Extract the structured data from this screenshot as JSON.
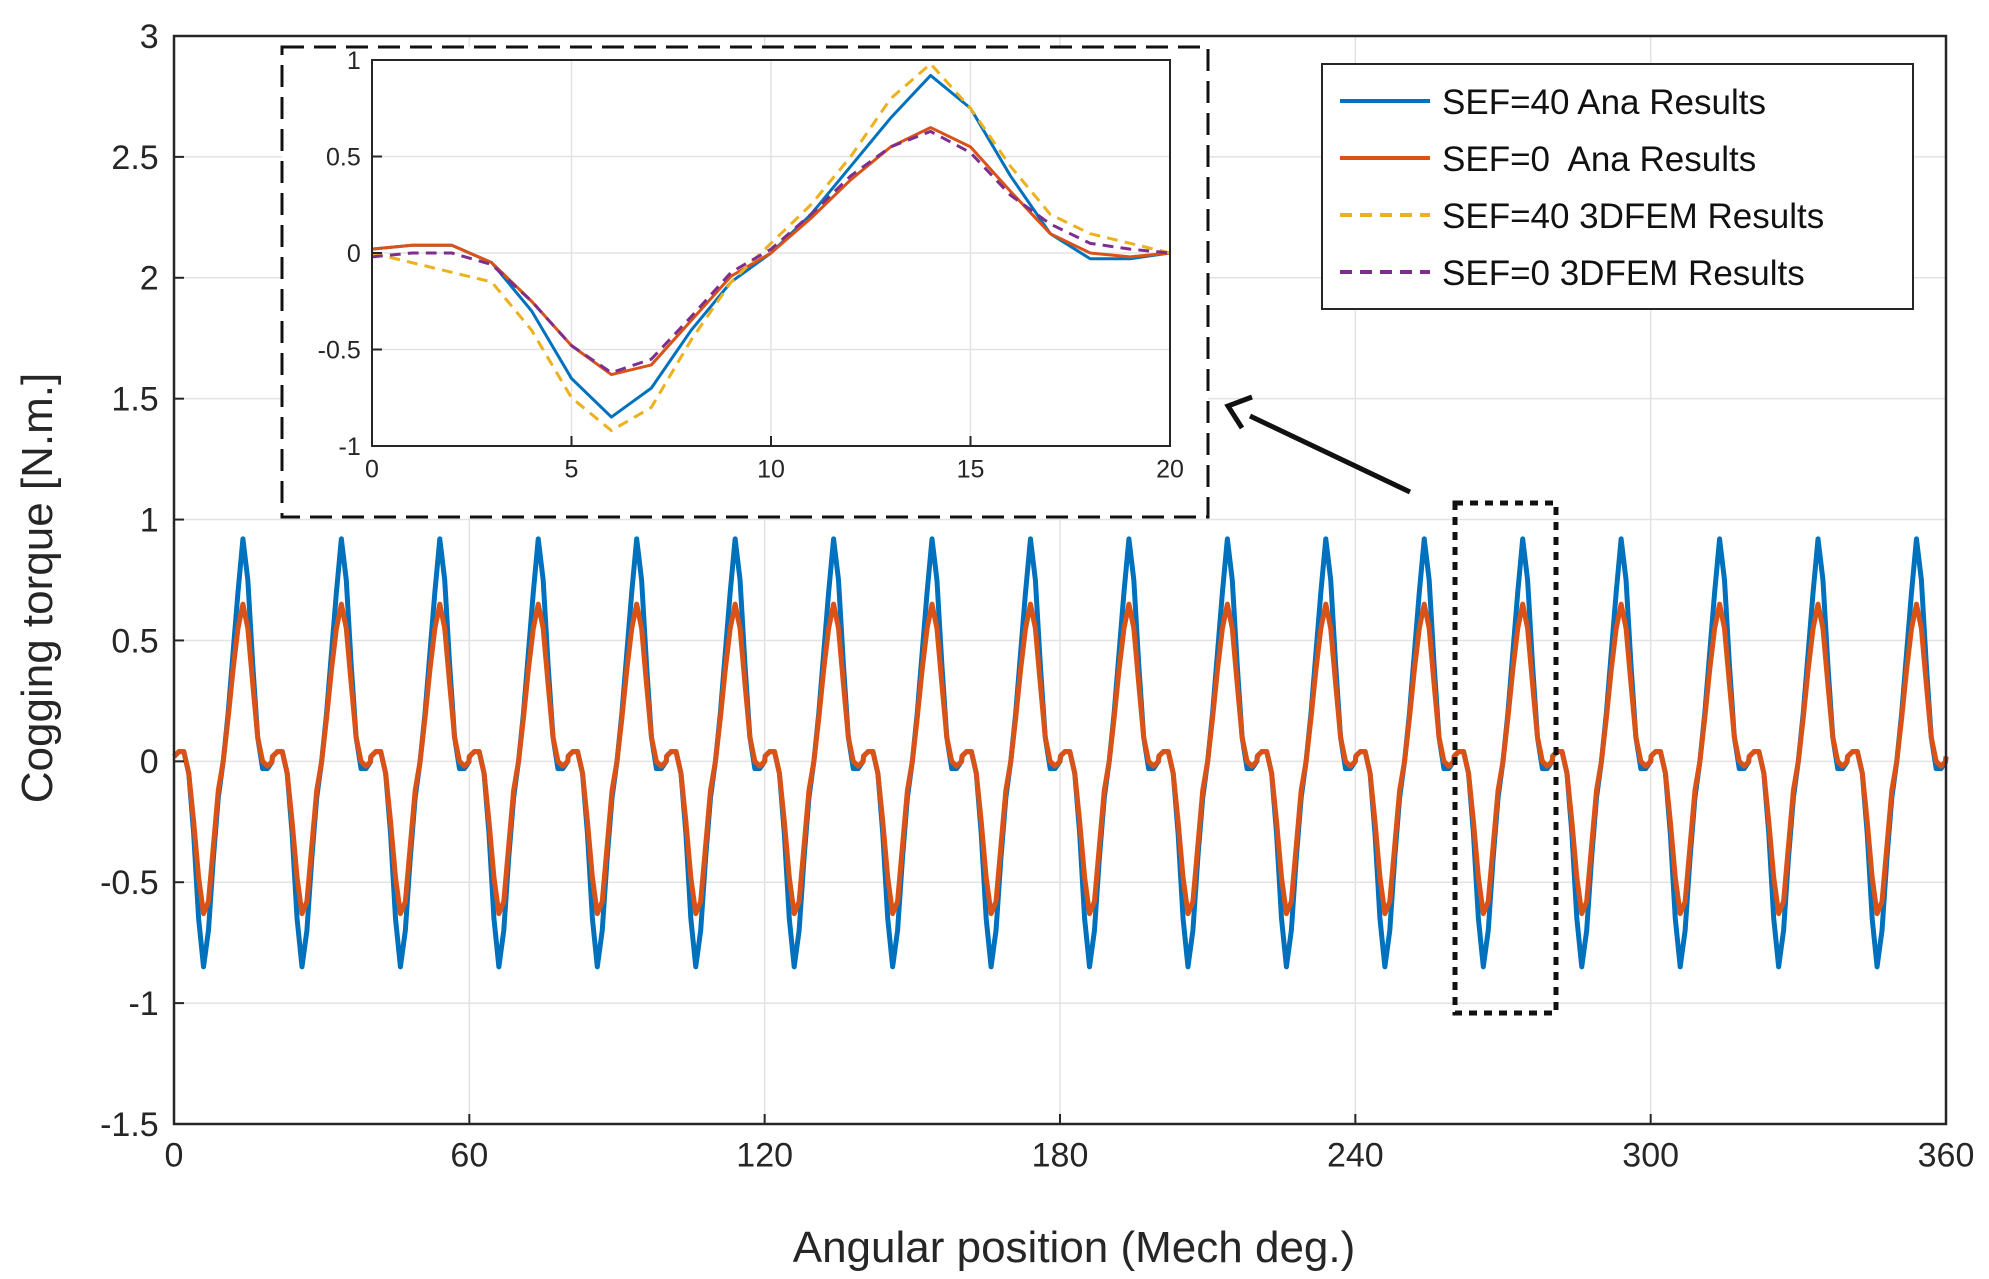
{
  "chart_data": [
    {
      "type": "line",
      "title": "",
      "xlabel": "Angular position (Mech deg.)",
      "ylabel": "Cogging torque [N.m.]",
      "xlim": [
        0,
        360
      ],
      "ylim": [
        -1.5,
        3
      ],
      "x_ticks": [
        "0",
        "60",
        "120",
        "180",
        "240",
        "300",
        "360"
      ],
      "y_ticks": [
        "3",
        "2.5",
        "2",
        "1.5",
        "1",
        "0.5",
        "0",
        "-0.5",
        "-1",
        "-1.5"
      ],
      "grid": true,
      "legend_position": "top-right",
      "period_deg": 20,
      "periods": 18,
      "series": [
        {
          "name": "SEF=40 Ana Results",
          "color": "#0072bd",
          "style": "solid",
          "x": [
            0,
            1,
            2,
            3,
            4,
            5,
            6,
            7,
            8,
            9,
            10,
            11,
            12,
            13,
            14,
            15,
            16,
            17,
            18,
            19,
            20
          ],
          "y": [
            0.02,
            0.04,
            0.04,
            -0.05,
            -0.3,
            -0.65,
            -0.85,
            -0.7,
            -0.4,
            -0.15,
            0.0,
            0.2,
            0.45,
            0.7,
            0.92,
            0.75,
            0.4,
            0.1,
            -0.03,
            -0.03,
            0.0
          ]
        },
        {
          "name": "SEF=0  Ana Results",
          "color": "#d95319",
          "style": "solid",
          "x": [
            0,
            1,
            2,
            3,
            4,
            5,
            6,
            7,
            8,
            9,
            10,
            11,
            12,
            13,
            14,
            15,
            16,
            17,
            18,
            19,
            20
          ],
          "y": [
            0.02,
            0.04,
            0.04,
            -0.05,
            -0.25,
            -0.48,
            -0.63,
            -0.58,
            -0.35,
            -0.12,
            0.0,
            0.18,
            0.38,
            0.55,
            0.65,
            0.55,
            0.32,
            0.1,
            0.0,
            -0.02,
            0.0
          ]
        },
        {
          "name": "SEF=40 3DFEM Results",
          "color": "#edb120",
          "style": "dashed",
          "x": [
            0,
            1,
            2,
            3,
            4,
            5,
            6,
            7,
            8,
            9,
            10,
            11,
            12,
            13,
            14,
            15,
            16,
            17,
            18,
            19,
            20
          ],
          "y": [
            0.0,
            -0.05,
            -0.1,
            -0.15,
            -0.4,
            -0.75,
            -0.92,
            -0.8,
            -0.45,
            -0.15,
            0.05,
            0.25,
            0.5,
            0.8,
            0.98,
            0.75,
            0.45,
            0.2,
            0.1,
            0.05,
            0.0
          ]
        },
        {
          "name": "SEF=0 3DFEM Results",
          "color": "#7e2f8e",
          "style": "dashed",
          "x": [
            0,
            1,
            2,
            3,
            4,
            5,
            6,
            7,
            8,
            9,
            10,
            11,
            12,
            13,
            14,
            15,
            16,
            17,
            18,
            19,
            20
          ],
          "y": [
            -0.02,
            0.0,
            0.0,
            -0.06,
            -0.25,
            -0.48,
            -0.62,
            -0.55,
            -0.33,
            -0.1,
            0.02,
            0.2,
            0.4,
            0.55,
            0.63,
            0.52,
            0.3,
            0.15,
            0.05,
            0.02,
            0.0
          ]
        }
      ]
    },
    {
      "type": "line",
      "xlim": [
        0,
        20
      ],
      "ylim": [
        -1,
        1
      ],
      "x_ticks": [
        "0",
        "5",
        "10",
        "15",
        "20"
      ],
      "y_ticks": [
        "1",
        "0.5",
        "0",
        "-0.5",
        "-1"
      ],
      "grid": true
    }
  ]
}
